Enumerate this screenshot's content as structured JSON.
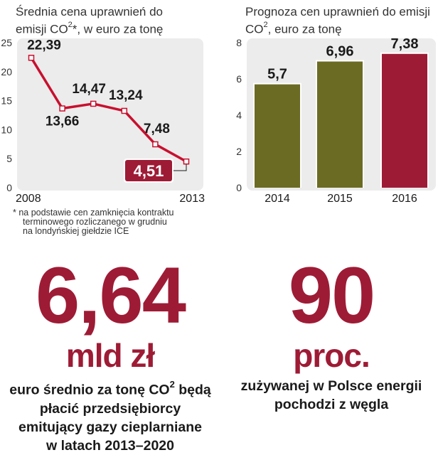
{
  "chart_data": [
    {
      "type": "line",
      "title_line1": "Średnia cena uprawnień do",
      "title_line2_pre": "emisji CO",
      "title_line2_sup": "2",
      "title_line2_post": "*, w euro za tonę",
      "x_tick_labels": [
        "2008",
        "2013"
      ],
      "y_ticks": [
        "0",
        "5",
        "10",
        "15",
        "20",
        "25"
      ],
      "ylim": [
        0,
        25
      ],
      "series": [
        {
          "x": [
            2008,
            2009,
            2010,
            2011,
            2012,
            2013
          ],
          "values": [
            22.39,
            13.66,
            14.47,
            13.24,
            7.48,
            4.51
          ],
          "labels": [
            "22,39",
            "13,66",
            "14,47",
            "13,24",
            "7,48",
            "4,51"
          ]
        }
      ],
      "highlight_label": "4,51",
      "line_color": "#c8102e",
      "footnote_lines": [
        "* na podstawie cen zamknięcia kontraktu",
        "terminowego rozliczanego w grudniu",
        "na londyńskiej giełdzie ICE"
      ]
    },
    {
      "type": "bar",
      "title_line1": "Prognoza cen uprawnień do emisji",
      "title_line2_pre": "CO",
      "title_line2_sup": "2",
      "title_line2_post": ", euro za tonę",
      "categories": [
        "2014",
        "2015",
        "2016"
      ],
      "values": [
        5.7,
        6.96,
        7.38
      ],
      "labels": [
        "5,7",
        "6,96",
        "7,38"
      ],
      "y_ticks": [
        "0",
        "2",
        "4",
        "6",
        "8"
      ],
      "ylim": [
        0,
        8
      ],
      "bar_colors": [
        "#6b6b23",
        "#6b6b23",
        "#9e1b35"
      ]
    }
  ],
  "stat_left": {
    "number": "6,64",
    "unit": "mld zł",
    "caption_line1_pre": "euro średnio za tonę CO",
    "caption_line1_sup": "2",
    "caption_line1_post": " będą",
    "caption_line2": "płacić przedsiębiorcy",
    "caption_line3": "emitujący gazy cieplarniane",
    "caption_line4": "w latach 2013–2020"
  },
  "stat_right": {
    "number": "90",
    "unit": "proc.",
    "caption_line1": "zużywanej w Polsce energii",
    "caption_line2": "pochodzi z węgla"
  },
  "colors": {
    "accent": "#9e1b35",
    "panel_bg": "#ececec",
    "olive": "#6b6b23"
  }
}
